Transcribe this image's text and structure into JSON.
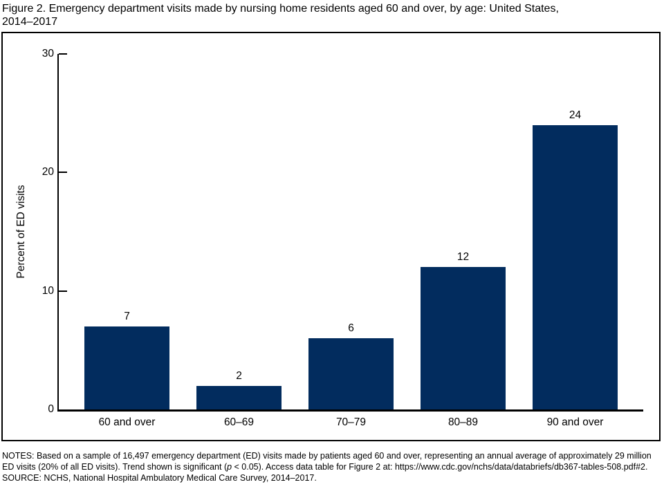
{
  "title": {
    "line1": "Figure 2. Emergency department visits made by nursing home residents aged 60 and over, by age: United States,",
    "line2": "2014–2017"
  },
  "chart_data": {
    "type": "bar",
    "title": "Figure 2. Emergency department visits made by nursing home residents aged 60 and over, by age: United States, 2014–2017",
    "categories": [
      "60 and over",
      "60–69",
      "70–79",
      "80–89",
      "90 and over"
    ],
    "values": [
      7,
      2,
      6,
      12,
      24
    ],
    "xlabel": "",
    "ylabel": "Percent of ED visits",
    "ylim": [
      0,
      30
    ],
    "yticks": [
      0,
      10,
      20,
      30
    ],
    "bar_color": "#022c5e",
    "grid": "off",
    "legend": "none",
    "value_labels_shown": true
  },
  "notes": {
    "prefix": "NOTES: Based on a sample of 16,497 emergency department (ED) visits made by patients aged 60 and over, representing an annual average of approximately 29 million ED visits (20% of all ED visits). Trend shown is significant (",
    "italic_var": "p",
    "suffix": " < 0.05). Access data table for Figure 2 at: https://www.cdc.gov/nchs/data/databriefs/db367-tables-508.pdf#2.",
    "source": "SOURCE: NCHS, National Hospital Ambulatory Medical Care Survey, 2014–2017."
  }
}
